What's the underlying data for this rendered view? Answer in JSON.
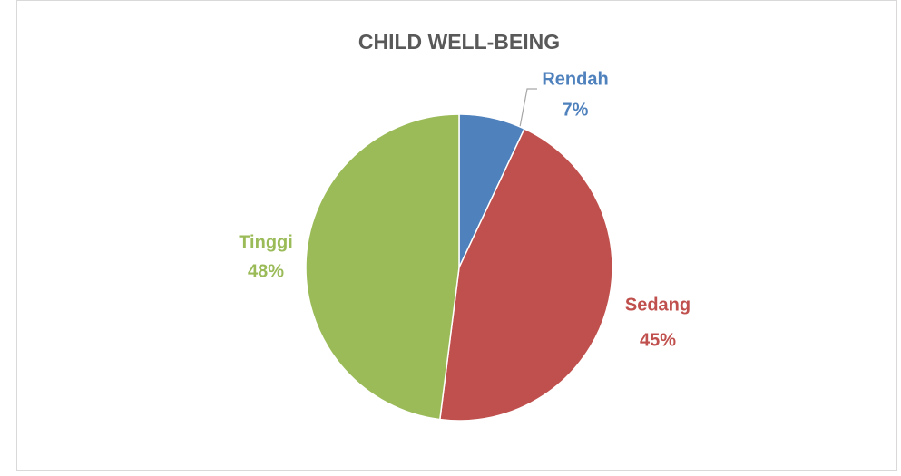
{
  "chart_data": {
    "type": "pie",
    "title": "CHILD WELL-BEING",
    "categories": [
      "Rendah",
      "Sedang",
      "Tinggi"
    ],
    "values": [
      7,
      45,
      48
    ],
    "value_labels": [
      "7%",
      "45%",
      "48%"
    ],
    "colors": [
      "#4f81bd",
      "#c0504d",
      "#9bbb59"
    ]
  }
}
